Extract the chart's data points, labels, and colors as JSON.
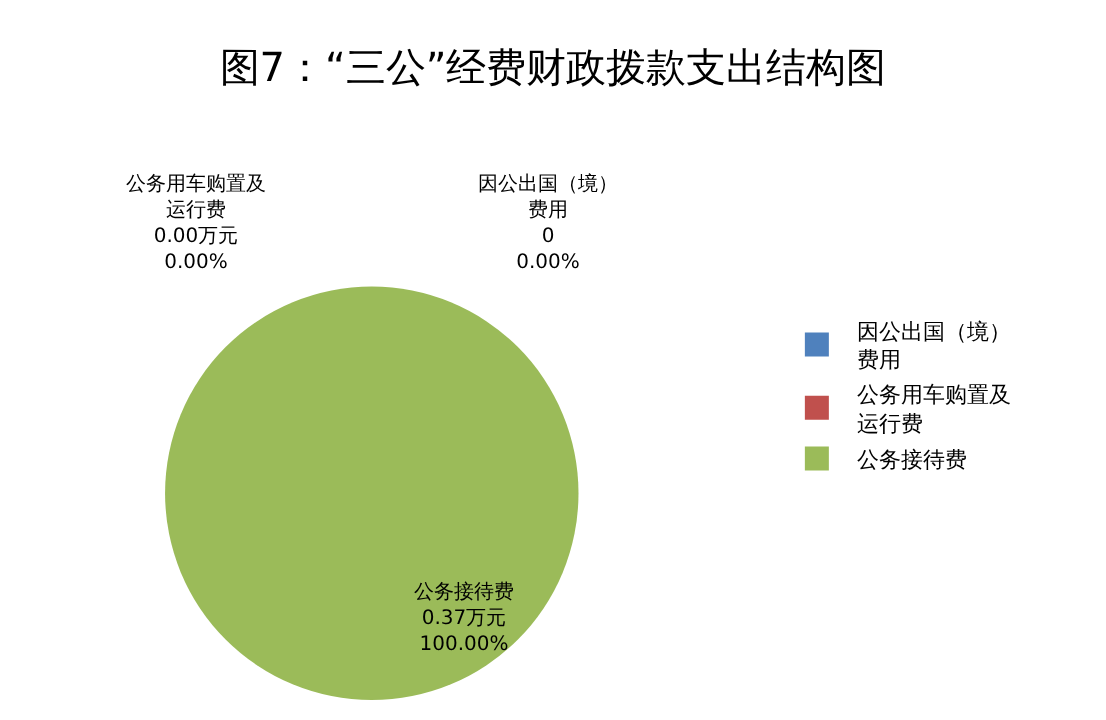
{
  "chart_data": {
    "type": "pie",
    "title": "图7：“三公”经费财政拨款支出结构图",
    "categories": [
      "因公出国（境）费用",
      "公务用车购置及运行费",
      "公务接待费"
    ],
    "values": [
      0,
      0,
      0.37
    ],
    "colors": [
      "#4f81bd",
      "#c0504d",
      "#9bbb59"
    ],
    "value_labels": [
      "0\n0.00%",
      "0.00万元\n0.00%",
      "0.37万元\n100.00%"
    ],
    "legend": "right"
  }
}
